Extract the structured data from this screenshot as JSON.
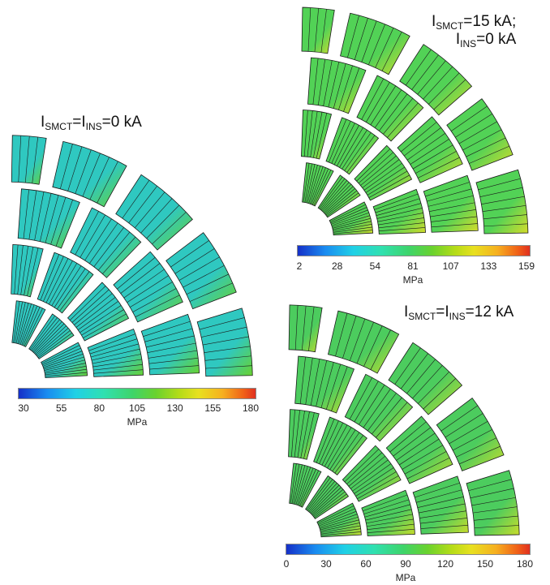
{
  "panels": [
    {
      "id": "p1",
      "title": {
        "parts": [
          [
            "I",
            ""
          ],
          [
            "SMCT",
            "sub"
          ],
          [
            "=I",
            ""
          ],
          [
            "INS",
            "sub"
          ],
          [
            "=0 kA",
            ""
          ]
        ]
      },
      "colorbar": {
        "ticks": [
          "30",
          "55",
          "80",
          "105",
          "130",
          "155",
          "180"
        ],
        "unit": "MPa"
      },
      "base_color": "#2fc8c0",
      "accent": "#6ad22e"
    },
    {
      "id": "p2",
      "title": {
        "parts": [
          [
            "I",
            ""
          ],
          [
            "SMCT",
            "sub"
          ],
          [
            "=15 kA;",
            ""
          ]
        ],
        "line2": [
          [
            "I",
            ""
          ],
          [
            "INS",
            "sub"
          ],
          [
            "=0 kA",
            ""
          ]
        ]
      },
      "colorbar": {
        "ticks": [
          "2",
          "28",
          "54",
          "81",
          "107",
          "133",
          "159"
        ],
        "unit": "MPa"
      },
      "base_color": "#52d256",
      "accent": "#d6dc2a"
    },
    {
      "id": "p3",
      "title": {
        "parts": [
          [
            "I",
            ""
          ],
          [
            "SMCT",
            "sub"
          ],
          [
            "=I",
            ""
          ],
          [
            "INS",
            "sub"
          ],
          [
            "=12 kA",
            ""
          ]
        ]
      },
      "colorbar": {
        "ticks": [
          "0",
          "30",
          "60",
          "90",
          "120",
          "150",
          "180"
        ],
        "unit": "MPa"
      },
      "base_color": "#4ccc5e",
      "accent": "#cadc2a"
    }
  ],
  "colors": {
    "low": "#1530c8",
    "mid": "#3ed46a",
    "high": "#e03020",
    "line": "#1a1a1a"
  }
}
